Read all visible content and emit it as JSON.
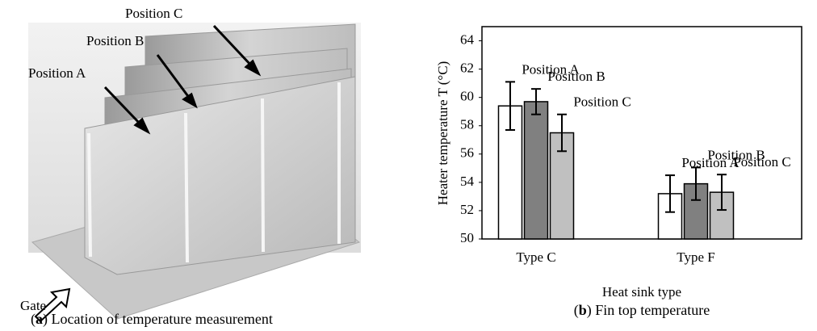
{
  "figure_a": {
    "labels": [
      "Position A",
      "Position B",
      "Position C",
      "Gate"
    ],
    "caption": {
      "open": "(",
      "tag": "a",
      "rest": ") Location of temperature measurement"
    }
  },
  "chart_data": {
    "type": "bar",
    "caption": {
      "open": "(",
      "tag": "b",
      "rest": ") Fin top temperature"
    },
    "xlabel": "Heat sink type",
    "ylabel": "Heater temperature T (°C)",
    "categories": [
      "Type C",
      "Type F"
    ],
    "series": [
      {
        "name": "Position A",
        "color": "#ffffff",
        "values": [
          59.4,
          53.2
        ],
        "errors": [
          1.7,
          1.3
        ]
      },
      {
        "name": "Position B",
        "color": "#808080",
        "values": [
          59.7,
          53.9
        ],
        "errors": [
          0.9,
          1.15
        ]
      },
      {
        "name": "Position C",
        "color": "#c0c0c0",
        "values": [
          57.5,
          53.3
        ],
        "errors": [
          1.3,
          1.25
        ]
      }
    ],
    "ylim": [
      50,
      65
    ],
    "yticks": [
      50,
      52,
      54,
      56,
      58,
      60,
      62,
      64
    ],
    "grid": false
  }
}
